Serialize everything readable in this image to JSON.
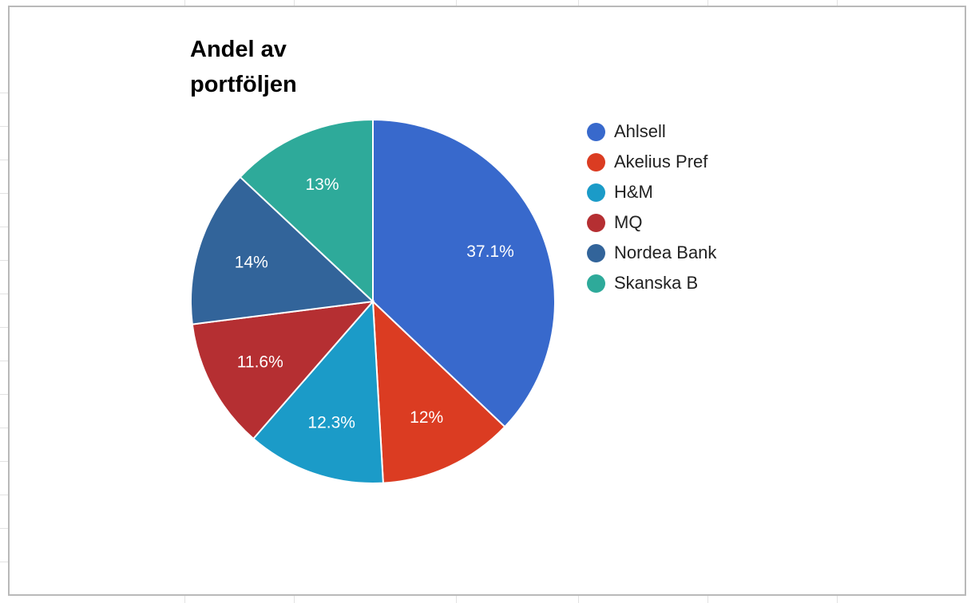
{
  "chart_data": {
    "type": "pie",
    "title": "Andel av portföljen",
    "categories": [
      "Ahlsell",
      "Akelius Pref",
      "H&M",
      "MQ",
      "Nordea Bank",
      "Skanska B"
    ],
    "values": [
      37.1,
      12,
      12.3,
      11.6,
      14,
      13
    ],
    "labels": [
      "37.1%",
      "12%",
      "12.3%",
      "11.6%",
      "14%",
      "13%"
    ],
    "colors": [
      "#3869cc",
      "#db3c22",
      "#1b9bc8",
      "#b52f32",
      "#32649a",
      "#2eaa9a"
    ],
    "legend_position": "right",
    "start_angle_deg": 0,
    "direction": "clockwise"
  }
}
